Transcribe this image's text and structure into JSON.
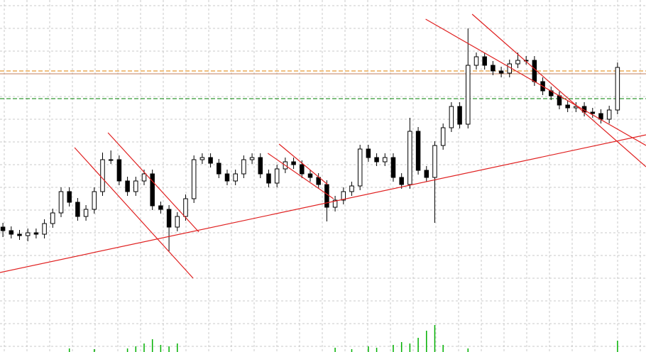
{
  "chart_data": {
    "type": "candlestick",
    "xlim": [
      -0.35,
      77.43
    ],
    "ylim": [
      0,
      496
    ],
    "volume_ylim": [
      0,
      40
    ],
    "up_color": "#ffffff",
    "down_color": "#000000",
    "volume_color": "#00b000",
    "open": [
      176,
      171,
      166,
      164,
      168,
      166,
      181,
      196,
      226,
      211,
      191,
      201,
      226,
      271,
      271,
      241,
      226,
      241,
      251,
      206,
      201,
      176,
      191,
      216,
      271,
      274,
      266,
      251,
      241,
      251,
      271,
      274,
      251,
      238,
      258,
      268,
      264,
      251,
      246,
      236,
      204,
      214,
      226,
      234,
      286,
      274,
      268,
      274,
      246,
      236,
      311,
      256,
      246,
      291,
      316,
      346,
      321,
      404,
      416,
      404,
      396,
      393,
      406,
      411,
      411,
      381,
      368,
      361,
      348,
      344,
      346,
      338,
      336,
      328,
      341
    ],
    "high": [
      182,
      177,
      172,
      174,
      174,
      187,
      202,
      232,
      232,
      217,
      207,
      232,
      281,
      284,
      277,
      247,
      247,
      257,
      257,
      212,
      207,
      197,
      222,
      277,
      280,
      280,
      272,
      257,
      257,
      277,
      280,
      280,
      257,
      264,
      274,
      274,
      270,
      257,
      252,
      242,
      220,
      232,
      240,
      292,
      292,
      280,
      280,
      280,
      252,
      330,
      317,
      262,
      297,
      322,
      352,
      352,
      456,
      422,
      422,
      410,
      402,
      412,
      422,
      417,
      417,
      387,
      374,
      367,
      354,
      352,
      352,
      344,
      342,
      347,
      408
    ],
    "low": [
      162,
      160,
      158,
      156,
      160,
      160,
      175,
      190,
      205,
      185,
      185,
      195,
      220,
      265,
      235,
      220,
      220,
      235,
      200,
      195,
      142,
      170,
      185,
      210,
      265,
      260,
      245,
      235,
      235,
      245,
      265,
      245,
      232,
      232,
      252,
      258,
      245,
      240,
      230,
      184,
      198,
      208,
      220,
      228,
      268,
      262,
      262,
      240,
      230,
      230,
      250,
      240,
      182,
      285,
      310,
      315,
      315,
      398,
      398,
      390,
      387,
      387,
      400,
      405,
      375,
      362,
      355,
      342,
      338,
      338,
      332,
      330,
      322,
      322,
      335
    ],
    "close": [
      171,
      166,
      164,
      168,
      166,
      181,
      196,
      226,
      211,
      191,
      201,
      226,
      271,
      271,
      241,
      226,
      241,
      251,
      206,
      201,
      176,
      191,
      216,
      271,
      274,
      266,
      251,
      241,
      251,
      271,
      274,
      251,
      238,
      258,
      268,
      264,
      251,
      246,
      236,
      204,
      214,
      226,
      234,
      286,
      274,
      268,
      274,
      246,
      236,
      311,
      256,
      246,
      291,
      316,
      346,
      321,
      404,
      416,
      404,
      396,
      393,
      406,
      411,
      411,
      381,
      368,
      361,
      348,
      344,
      346,
      338,
      336,
      328,
      341,
      401
    ],
    "volume": [
      0,
      0,
      0,
      0,
      0,
      0,
      0,
      0,
      5,
      0,
      0,
      4,
      0,
      0,
      0,
      5,
      8,
      12,
      18,
      10,
      8,
      12,
      0,
      0,
      0,
      0,
      0,
      0,
      0,
      0,
      0,
      0,
      0,
      0,
      0,
      0,
      0,
      0,
      0,
      0,
      6,
      0,
      4,
      0,
      8,
      6,
      0,
      10,
      14,
      12,
      20,
      30,
      38,
      10,
      0,
      0,
      5,
      0,
      0,
      0,
      0,
      0,
      0,
      0,
      0,
      0,
      0,
      0,
      0,
      0,
      0,
      0,
      0,
      0,
      16
    ],
    "hlines": [
      {
        "value": 396,
        "color": "#e08000",
        "dash": true
      },
      {
        "value": 392,
        "color": "#c08060",
        "dash": false
      },
      {
        "value": 357,
        "color": "#008000",
        "dash": true
      }
    ],
    "trendlines": [
      {
        "x": [
          -0.35,
          77.43
        ],
        "y": [
          112,
          306
        ],
        "color": "#e02020"
      },
      {
        "x": [
          8.63,
          22.9
        ],
        "y": [
          288,
          104
        ],
        "color": "#e02020"
      },
      {
        "x": [
          12.65,
          23.6
        ],
        "y": [
          309,
          169
        ],
        "color": "#e02020"
      },
      {
        "x": [
          31.9,
          39.8
        ],
        "y": [
          280,
          216
        ],
        "color": "#e02020"
      },
      {
        "x": [
          33.25,
          39.1
        ],
        "y": [
          293,
          236
        ],
        "color": "#e02020"
      },
      {
        "x": [
          50.9,
          77.43
        ],
        "y": [
          469,
          291
        ],
        "color": "#e02020"
      },
      {
        "x": [
          56.5,
          77.43
        ],
        "y": [
          476,
          261
        ],
        "color": "#e02020"
      }
    ]
  }
}
